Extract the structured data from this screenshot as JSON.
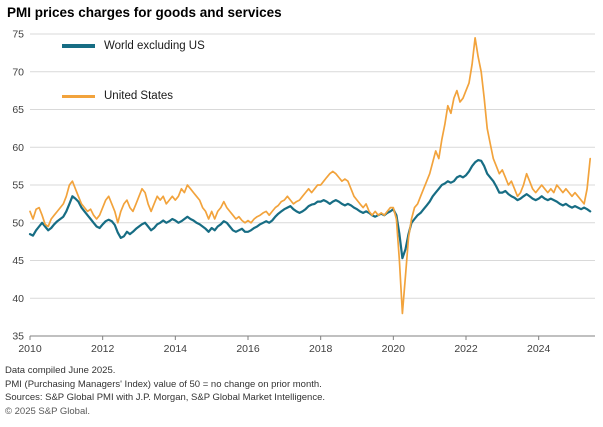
{
  "title": "PMI prices charges for goods and services",
  "footer": {
    "line1": "Data compiled June 2025.",
    "line2": "PMI (Purchasing Managers' Index) value of 50 = no change on prior month.",
    "line3": "Sources: S&P Global PMI with J.P. Morgan, S&P Global Market Intelligence.",
    "line4": "© 2025 S&P Global."
  },
  "chart_data": {
    "type": "line",
    "title": "PMI prices charges for goods and services",
    "xlabel": "",
    "ylabel": "",
    "x_start": 2010,
    "x_step": 0.0833333,
    "xlim": [
      2010,
      2025.55
    ],
    "ylim": [
      35,
      75
    ],
    "xticks": [
      2010,
      2012,
      2014,
      2016,
      2018,
      2020,
      2022,
      2024
    ],
    "yticks": [
      35,
      40,
      45,
      50,
      55,
      60,
      65,
      70,
      75
    ],
    "grid": "horizontal",
    "gridline_color": "#d9d9d9",
    "axis_color": "#808080",
    "legend_position": "top-left-inside",
    "series": [
      {
        "name": "World excluding US",
        "color": "#176d84",
        "width": 2.2,
        "values": [
          48.5,
          48.3,
          49.0,
          49.5,
          50.0,
          49.5,
          49.0,
          49.3,
          49.8,
          50.2,
          50.5,
          50.8,
          51.5,
          52.5,
          53.5,
          53.2,
          52.8,
          52.0,
          51.5,
          51.0,
          50.5,
          50.0,
          49.5,
          49.3,
          49.8,
          50.2,
          50.4,
          50.2,
          49.7,
          48.7,
          48.0,
          48.2,
          48.8,
          48.5,
          48.8,
          49.2,
          49.5,
          49.8,
          50.0,
          49.5,
          49.0,
          49.3,
          49.8,
          50.0,
          50.3,
          50.0,
          50.2,
          50.5,
          50.3,
          50.0,
          50.2,
          50.5,
          50.8,
          50.5,
          50.3,
          50.0,
          49.8,
          49.5,
          49.2,
          48.8,
          49.3,
          49.0,
          49.5,
          49.8,
          50.2,
          50.0,
          49.5,
          49.0,
          48.8,
          49.0,
          49.2,
          48.8,
          48.8,
          49.0,
          49.3,
          49.5,
          49.8,
          50.0,
          50.2,
          50.0,
          50.3,
          50.8,
          51.2,
          51.5,
          51.8,
          52.0,
          52.2,
          51.8,
          51.5,
          51.3,
          51.5,
          51.8,
          52.2,
          52.4,
          52.5,
          52.8,
          52.8,
          53.0,
          52.8,
          52.5,
          52.8,
          53.0,
          52.8,
          52.5,
          52.3,
          52.5,
          52.3,
          52.0,
          51.8,
          51.5,
          51.3,
          51.5,
          51.3,
          51.0,
          50.8,
          51.0,
          51.2,
          51.0,
          51.3,
          51.5,
          51.8,
          51.0,
          48.5,
          45.3,
          46.5,
          48.5,
          50.0,
          50.5,
          51.0,
          51.3,
          51.8,
          52.3,
          52.8,
          53.5,
          54.0,
          54.5,
          55.0,
          55.2,
          55.5,
          55.3,
          55.5,
          56.0,
          56.2,
          56.0,
          56.3,
          56.8,
          57.5,
          58.0,
          58.3,
          58.2,
          57.5,
          56.5,
          56.0,
          55.5,
          54.8,
          54.0,
          54.0,
          54.2,
          53.8,
          53.5,
          53.3,
          53.0,
          53.2,
          53.5,
          53.8,
          53.5,
          53.2,
          53.0,
          53.2,
          53.5,
          53.2,
          53.0,
          53.2,
          53.0,
          52.8,
          52.5,
          52.3,
          52.5,
          52.2,
          52.0,
          52.2,
          52.0,
          51.8,
          52.0,
          51.8,
          51.5
        ]
      },
      {
        "name": "United States",
        "color": "#f2a33c",
        "width": 1.7,
        "values": [
          51.5,
          50.5,
          51.8,
          52.0,
          51.0,
          49.8,
          49.5,
          50.5,
          51.0,
          51.5,
          52.0,
          52.5,
          53.5,
          55.0,
          55.5,
          54.5,
          53.5,
          52.5,
          52.0,
          51.5,
          51.8,
          51.0,
          50.5,
          51.0,
          52.0,
          53.0,
          53.5,
          52.5,
          51.5,
          50.0,
          51.5,
          52.5,
          53.0,
          52.0,
          51.5,
          52.5,
          53.5,
          54.5,
          54.0,
          52.5,
          51.5,
          52.5,
          53.5,
          53.0,
          53.5,
          52.5,
          53.0,
          53.5,
          53.0,
          53.5,
          54.5,
          54.0,
          55.0,
          54.5,
          54.0,
          53.5,
          53.0,
          52.0,
          51.5,
          50.5,
          51.5,
          50.5,
          51.5,
          52.0,
          52.8,
          52.0,
          51.5,
          51.0,
          50.5,
          50.8,
          50.3,
          50.0,
          50.3,
          50.0,
          50.5,
          50.8,
          51.0,
          51.3,
          51.5,
          51.0,
          51.5,
          52.0,
          52.3,
          52.8,
          53.0,
          53.5,
          53.0,
          52.5,
          52.8,
          53.0,
          53.5,
          54.0,
          54.5,
          54.0,
          54.5,
          55.0,
          55.0,
          55.5,
          56.0,
          56.5,
          56.8,
          56.5,
          56.0,
          55.5,
          55.8,
          55.5,
          54.5,
          53.5,
          53.0,
          52.5,
          52.0,
          52.5,
          51.5,
          51.0,
          51.5,
          51.0,
          51.3,
          51.0,
          51.5,
          52.0,
          52.0,
          50.5,
          45.0,
          38.0,
          43.0,
          48.0,
          50.5,
          52.0,
          52.5,
          53.5,
          54.5,
          55.5,
          56.5,
          58.0,
          59.5,
          58.5,
          61.0,
          63.0,
          65.5,
          64.5,
          66.5,
          67.5,
          66.0,
          66.5,
          67.5,
          68.5,
          71.0,
          74.5,
          72.0,
          70.0,
          66.5,
          62.5,
          60.5,
          58.5,
          57.5,
          56.5,
          57.0,
          56.0,
          55.0,
          55.5,
          54.5,
          53.5,
          54.0,
          55.0,
          56.5,
          55.5,
          54.5,
          54.0,
          54.5,
          55.0,
          54.5,
          54.0,
          54.5,
          54.0,
          55.0,
          54.5,
          54.0,
          54.5,
          54.0,
          53.5,
          54.0,
          53.5,
          53.0,
          52.5,
          54.5,
          58.5
        ]
      }
    ]
  }
}
